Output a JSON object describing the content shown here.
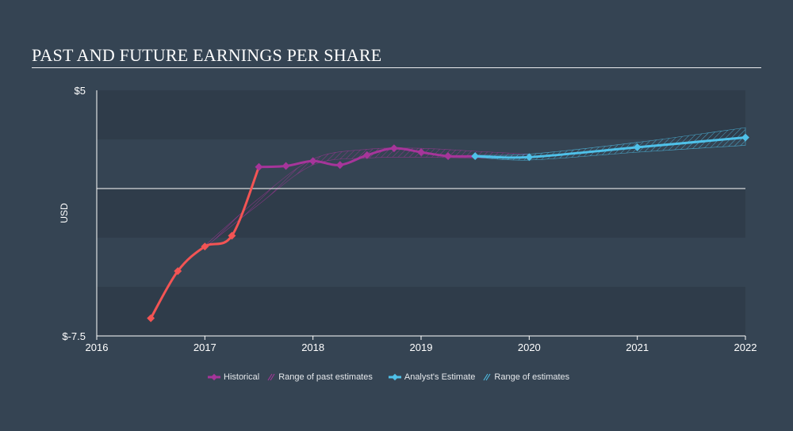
{
  "title": "PAST AND FUTURE EARNINGS PER SHARE",
  "colors": {
    "background": "#354453",
    "band": "#2f3c4a",
    "historical_early": "#f35454",
    "historical": "#a6359a",
    "estimate": "#4fc1e9",
    "zero_line": "#ffffff"
  },
  "legend": {
    "historical": "Historical",
    "past_range": "Range of past estimates",
    "estimate": "Analyst's Estimate",
    "future_range": "Range of estimates"
  },
  "chart_data": {
    "type": "line",
    "title": "PAST AND FUTURE EARNINGS PER SHARE",
    "ylabel": "USD",
    "ylim": [
      -7.5,
      5
    ],
    "xlim": [
      2016,
      2022
    ],
    "y_tick_labels": [
      "$5",
      "$-7.5"
    ],
    "x_tick_labels": [
      "2016",
      "2017",
      "2018",
      "2019",
      "2020",
      "2021",
      "2022"
    ],
    "grid": "alternating horizontal bands",
    "legend_position": "bottom-center",
    "series": [
      {
        "name": "Historical",
        "x": [
          2016.5,
          2016.75,
          2017.0,
          2017.25,
          2017.5,
          2017.75,
          2018.0,
          2018.25,
          2018.5,
          2018.75,
          2019.0,
          2019.25,
          2019.5
        ],
        "y": [
          -6.6,
          -4.2,
          -2.95,
          -2.4,
          1.1,
          1.15,
          1.4,
          1.2,
          1.7,
          2.05,
          1.85,
          1.65,
          1.65
        ]
      },
      {
        "name": "Analyst's Estimate",
        "x": [
          2019.5,
          2020.0,
          2021.0,
          2022.0
        ],
        "y": [
          1.65,
          1.6,
          2.1,
          2.6
        ]
      },
      {
        "name": "Range of past estimates",
        "x": [
          2017.0,
          2017.5,
          2018.0,
          2018.5,
          2019.0,
          2019.5,
          2020.0
        ],
        "low": [
          -3.0,
          -0.8,
          1.2,
          1.55,
          1.6,
          1.55,
          1.6
        ],
        "high": [
          -2.9,
          -0.5,
          1.5,
          2.0,
          2.05,
          1.9,
          1.75
        ]
      },
      {
        "name": "Range of estimates",
        "x": [
          2019.5,
          2020.0,
          2021.0,
          2022.0
        ],
        "low": [
          1.6,
          1.45,
          1.85,
          2.2
        ],
        "high": [
          1.7,
          1.75,
          2.35,
          3.1
        ]
      }
    ]
  }
}
